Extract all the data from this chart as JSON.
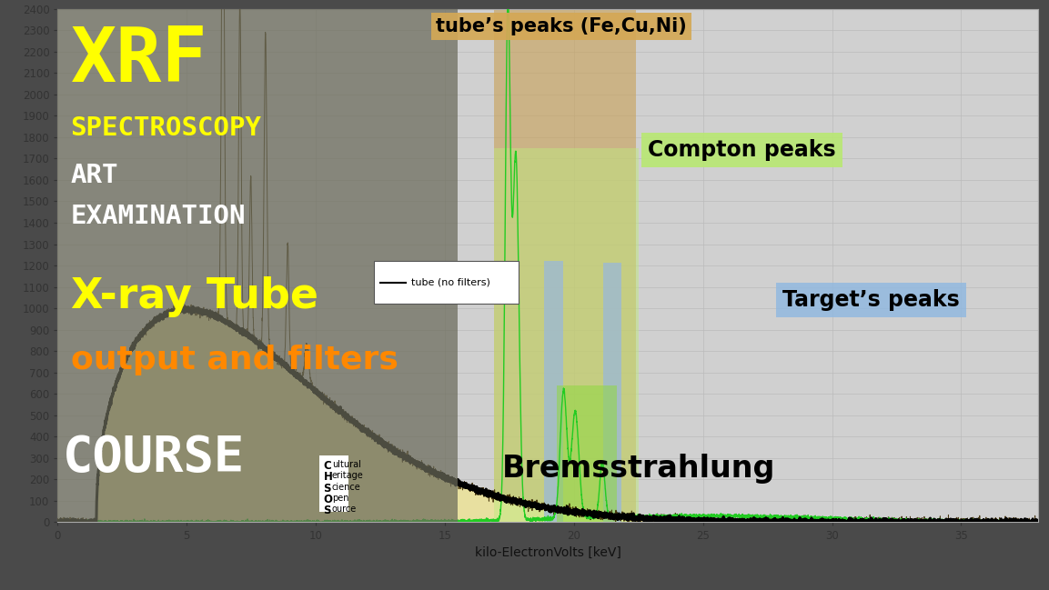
{
  "xlabel": "kilo-ElectronVolts [keV]",
  "xlim": [
    0,
    38
  ],
  "ylim": [
    0,
    2400
  ],
  "yticks": [
    0,
    100,
    200,
    300,
    400,
    500,
    600,
    700,
    800,
    900,
    1000,
    1100,
    1200,
    1300,
    1400,
    1500,
    1600,
    1700,
    1800,
    1900,
    2000,
    2100,
    2200,
    2300,
    2400
  ],
  "xticks": [
    0,
    5,
    10,
    15,
    20,
    25,
    30,
    35
  ],
  "bg_color": "#4a4a4a",
  "plot_bg_color": "#d0d0d0",
  "left_overlay_color": "#6a6a5a",
  "grid_color": "#bbbbbb",
  "bremsstrahlung_fill": "#e8e0a0",
  "bremsstrahlung_line": "#000000",
  "tube_col_color": "#c8a055",
  "compton_col_color": "#c0e880",
  "target_bar_color": "#9ab8d8",
  "small_green_box_color": "#90d840",
  "green_line_color": "#22cc22",
  "tube_line_color": "#3a2800",
  "label_tube_no_filter": "tube (no filters)",
  "text_xrf": "XRF",
  "text_spectroscopy": "SPECTROSCOPY",
  "text_art": "ART",
  "text_examination": "EXAMINATION",
  "text_xray_tube": "X-ray Tube",
  "text_output_filters": "output and filters",
  "text_course": "COURSE",
  "text_bremsstrahlung": "Bremsstrahlung",
  "text_tube_peaks": "tube’s peaks (Fe,Cu,Ni)",
  "text_compton": "Compton peaks",
  "text_target": "Target’s peaks",
  "xrf_color": "#ffff00",
  "spectroscopy_color": "#ffff00",
  "art_examination_color": "#ffffff",
  "xray_tube_color": "#ffff00",
  "output_filters_color": "#ff8800",
  "course_color": "#ffffff",
  "tube_peaks_label_bg": "#d4a855",
  "compton_label_bg": "#b8e870",
  "target_label_bg": "#90b8e0"
}
